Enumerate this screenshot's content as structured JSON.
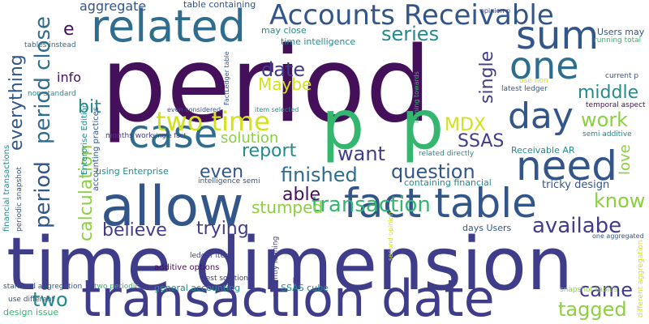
{
  "words": [
    {
      "text": "period",
      "color": "purple"
    },
    {
      "text": "time dimension",
      "color": "indigo"
    },
    {
      "text": "transaction date",
      "color": "indigo"
    },
    {
      "text": "allow",
      "color": "navy"
    },
    {
      "text": "fact table",
      "color": "navy"
    },
    {
      "text": "p",
      "color": "green"
    },
    {
      "text": "p",
      "color": "green"
    },
    {
      "text": "Accounts Receivable",
      "color": "navy"
    },
    {
      "text": "related",
      "color": "blue"
    },
    {
      "text": "sum",
      "color": "navy"
    },
    {
      "text": "one",
      "color": "blue"
    },
    {
      "text": "case",
      "color": "blue"
    },
    {
      "text": "need",
      "color": "navy"
    },
    {
      "text": "day",
      "color": "navy"
    },
    {
      "text": "period close",
      "color": "blue"
    },
    {
      "text": "period",
      "color": "navy"
    },
    {
      "text": "everything",
      "color": "navy"
    },
    {
      "text": "calculation",
      "color": "lime"
    },
    {
      "text": "two time",
      "color": "yellow"
    },
    {
      "text": "date",
      "color": "indigo"
    },
    {
      "text": "series",
      "color": "teal"
    },
    {
      "text": "single",
      "color": "indigo"
    },
    {
      "text": "middle",
      "color": "teal"
    },
    {
      "text": "work",
      "color": "lime"
    },
    {
      "text": "MDX",
      "color": "yellow"
    },
    {
      "text": "SSAS",
      "color": "indigo"
    },
    {
      "text": "solution",
      "color": "lime"
    },
    {
      "text": "report",
      "color": "teal"
    },
    {
      "text": "want",
      "color": "indigo"
    },
    {
      "text": "finished",
      "color": "blue"
    },
    {
      "text": "question",
      "color": "navy"
    },
    {
      "text": "transaction",
      "color": "green"
    },
    {
      "text": "availabe",
      "color": "indigo"
    },
    {
      "text": "believe",
      "color": "indigo"
    },
    {
      "text": "know",
      "color": "lime"
    },
    {
      "text": "love",
      "color": "lime"
    },
    {
      "text": "came",
      "color": "indigo"
    },
    {
      "text": "tagged",
      "color": "lime"
    },
    {
      "text": "two",
      "color": "teal"
    },
    {
      "text": "bit",
      "color": "teal"
    },
    {
      "text": "info",
      "color": "purple"
    },
    {
      "text": "e",
      "color": "purple"
    },
    {
      "text": "Maybe",
      "color": "yellow"
    },
    {
      "text": "even",
      "color": "navy"
    },
    {
      "text": "able",
      "color": "purple"
    },
    {
      "text": "stumped",
      "color": "lime"
    },
    {
      "text": "trying",
      "color": "indigo"
    },
    {
      "text": "aggregate",
      "color": "navy"
    },
    {
      "text": "table containing",
      "color": "navy"
    },
    {
      "text": "opinion p",
      "color": "indigo"
    },
    {
      "text": "Users may",
      "color": "navy"
    },
    {
      "text": "running total",
      "color": "green"
    },
    {
      "text": "may close",
      "color": "teal"
    },
    {
      "text": "time intelligence",
      "color": "teal"
    },
    {
      "text": "tables instead",
      "color": "blue"
    },
    {
      "text": "non standard",
      "color": "teal"
    },
    {
      "text": "current p",
      "color": "navy"
    },
    {
      "text": "use non",
      "color": "yellow"
    },
    {
      "text": "latest ledger",
      "color": "navy"
    },
    {
      "text": "temporal aspect",
      "color": "purple"
    },
    {
      "text": "semi additive",
      "color": "teal"
    },
    {
      "text": "Receivable AR",
      "color": "teal"
    },
    {
      "text": "months work",
      "color": "indigo"
    },
    {
      "text": "single fact",
      "color": "indigo"
    },
    {
      "text": "using Enterprise",
      "color": "teal"
    },
    {
      "text": "intelligence semi",
      "color": "navy"
    },
    {
      "text": "containing financial",
      "color": "teal"
    },
    {
      "text": "related directly",
      "color": "teal"
    },
    {
      "text": "tricky design",
      "color": "navy"
    },
    {
      "text": "days Users",
      "color": "navy"
    },
    {
      "text": "one aggregated",
      "color": "navy"
    },
    {
      "text": "even considered",
      "color": "navy"
    },
    {
      "text": "item selected",
      "color": "teal"
    },
    {
      "text": "ledger item",
      "color": "indigo"
    },
    {
      "text": "best solution",
      "color": "indigo"
    },
    {
      "text": "additive options",
      "color": "purple"
    },
    {
      "text": "general accounting",
      "color": "teal"
    },
    {
      "text": "SSAS cube",
      "color": "teal"
    },
    {
      "text": "standard aggregation",
      "color": "navy"
    },
    {
      "text": "two periodic",
      "color": "green"
    },
    {
      "text": "snapshot tables",
      "color": "lime"
    },
    {
      "text": "use different",
      "color": "navy"
    },
    {
      "text": "design issue",
      "color": "green"
    },
    {
      "text": "financial transactions",
      "color": "teal"
    },
    {
      "text": "periodic snapshot",
      "color": "navy"
    },
    {
      "text": "Enterprise Edition",
      "color": "teal"
    },
    {
      "text": "accounting practices",
      "color": "navy"
    },
    {
      "text": "FactLedger table",
      "color": "navy"
    },
    {
      "text": "leaning towards",
      "color": "green"
    },
    {
      "text": "currently leaning",
      "color": "indigo"
    },
    {
      "text": "second opinion",
      "color": "yellow"
    },
    {
      "text": "different aggregation",
      "color": "yellow"
    }
  ]
}
